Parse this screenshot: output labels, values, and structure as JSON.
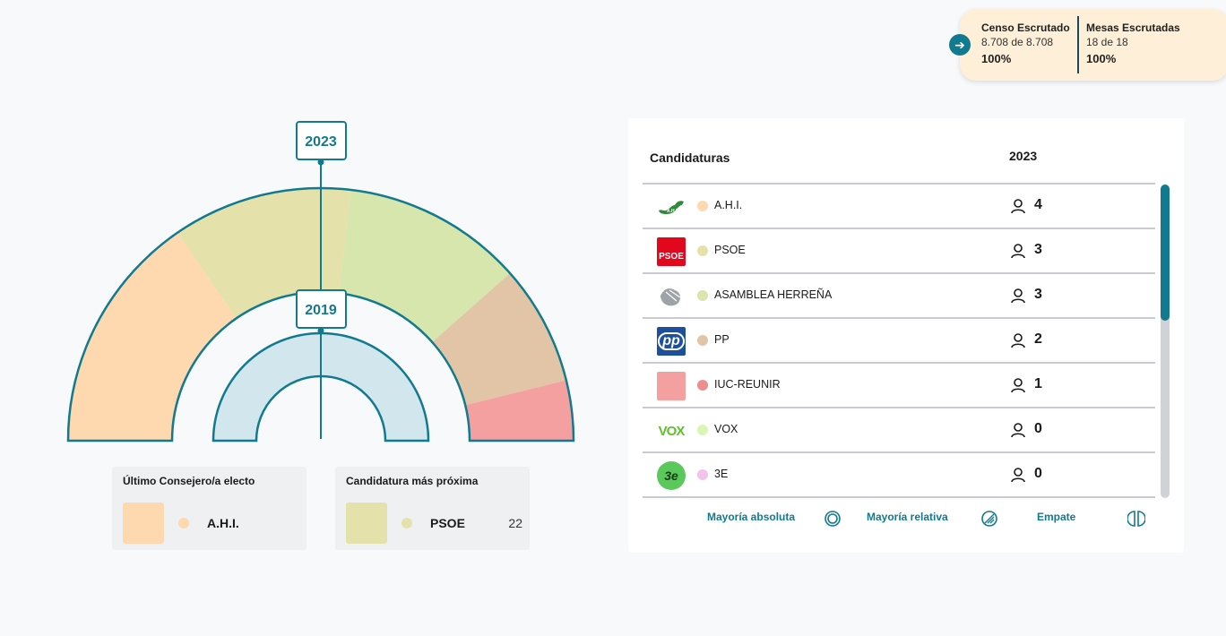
{
  "status": {
    "censo_title": "Censo Escrutado",
    "censo_value": "8.708 de 8.708",
    "censo_pct": "100%",
    "mesas_title": "Mesas Escrutadas",
    "mesas_value": "18 de 18",
    "mesas_pct": "100%"
  },
  "hemicycle": {
    "year_outer": "2023",
    "year_inner": "2019"
  },
  "cards": {
    "last_title": "Último Consejero/a electo",
    "last_party": "A.H.I.",
    "last_color": "#fed8ae",
    "next_title": "Candidatura más próxima",
    "next_party": "PSOE",
    "next_value": "22",
    "next_color": "#e4e2aa"
  },
  "table": {
    "header_candidaturas": "Candidaturas",
    "header_year": "2023",
    "rows": [
      {
        "name": "A.H.I.",
        "seats": "4",
        "color": "#fed8ae",
        "logo": "ahi-logo"
      },
      {
        "name": "PSOE",
        "seats": "3",
        "color": "#e4e2aa",
        "logo": "psoe-logo",
        "logo_text": "PSOE"
      },
      {
        "name": "ASAMBLEA HERREÑA",
        "seats": "3",
        "color": "#d6e6ad",
        "logo": "asamblea-logo"
      },
      {
        "name": "PP",
        "seats": "2",
        "color": "#e2c5a6",
        "logo": "pp-logo",
        "logo_text": "pp"
      },
      {
        "name": "IUC-REUNIR",
        "seats": "1",
        "color": "#f5a0a0",
        "logo": "iuc-logo"
      },
      {
        "name": "VOX",
        "seats": "0",
        "color": "#d9f7b0",
        "logo": "vox-logo",
        "logo_text": "VOX"
      },
      {
        "name": "3E",
        "seats": "0",
        "color": "#f4c2ee",
        "logo": "3e-logo",
        "logo_text": "3e"
      }
    ]
  },
  "legend": {
    "absolute": "Mayoría absoluta",
    "relative": "Mayoría relativa",
    "tie": "Empate"
  },
  "colors": {
    "accent": "#127a8f",
    "inner_arc": "#d1e6ed"
  }
}
